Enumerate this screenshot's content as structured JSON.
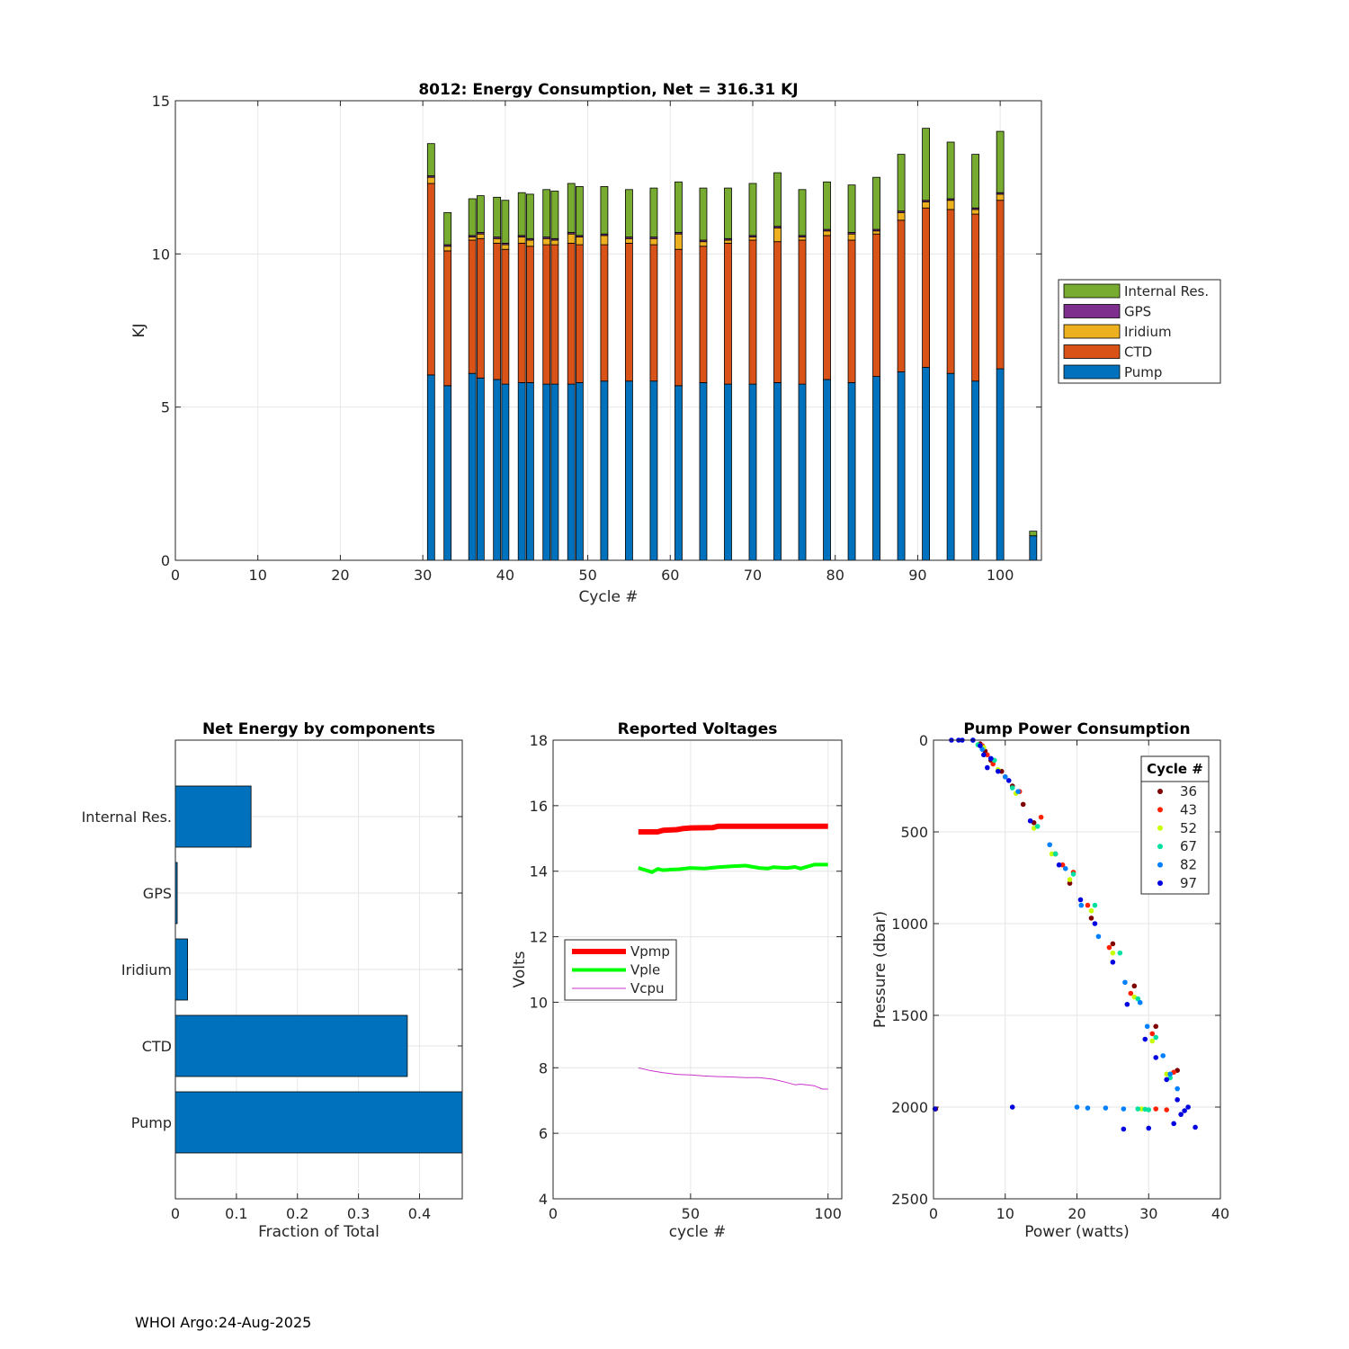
{
  "footer": "WHOI Argo:24-Aug-2025",
  "colors": {
    "pump": "#0072BD",
    "ctd": "#D95319",
    "iridium": "#EDB120",
    "gps": "#7E2F8E",
    "internal": "#77AC30",
    "vpmp": "#FF0000",
    "vple": "#00FF00",
    "vcpu": "#CC33CC",
    "grid": "#e6e6e6",
    "axis": "#262626"
  },
  "chart_data": [
    {
      "id": "energy",
      "type": "bar",
      "stacked": true,
      "title": "8012: Energy Consumption,  Net = 316.31 KJ",
      "xlabel": "Cycle #",
      "ylabel": "KJ",
      "xlim": [
        0,
        105
      ],
      "ylim": [
        0,
        15
      ],
      "xticks": [
        0,
        10,
        20,
        30,
        40,
        50,
        60,
        70,
        80,
        90,
        100
      ],
      "yticks": [
        0,
        5,
        10,
        15
      ],
      "grid": true,
      "legend": {
        "placement": "outside-right",
        "entries": [
          "Internal Res.",
          "GPS",
          "Iridium",
          "CTD",
          "Pump"
        ]
      },
      "x": [
        31,
        33,
        36,
        37,
        39,
        40,
        42,
        43,
        45,
        46,
        48,
        49,
        52,
        55,
        58,
        61,
        64,
        67,
        70,
        73,
        76,
        79,
        82,
        85,
        88,
        91,
        94,
        97,
        100,
        104
      ],
      "series": [
        {
          "name": "Pump",
          "color_key": "pump",
          "values": [
            6.05,
            5.7,
            6.1,
            5.95,
            5.9,
            5.75,
            5.8,
            5.8,
            5.75,
            5.75,
            5.75,
            5.8,
            5.85,
            5.85,
            5.85,
            5.7,
            5.8,
            5.75,
            5.75,
            5.8,
            5.75,
            5.9,
            5.8,
            6.0,
            6.15,
            6.3,
            6.1,
            5.85,
            6.25,
            0.8
          ]
        },
        {
          "name": "CTD",
          "color_key": "ctd",
          "values": [
            6.25,
            4.4,
            4.35,
            4.55,
            4.45,
            4.4,
            4.55,
            4.45,
            4.55,
            4.55,
            4.6,
            4.5,
            4.45,
            4.5,
            4.45,
            4.45,
            4.45,
            4.6,
            4.7,
            4.6,
            4.7,
            4.7,
            4.65,
            4.65,
            4.95,
            5.2,
            5.35,
            5.45,
            5.5,
            0.0
          ]
        },
        {
          "name": "Iridium",
          "color_key": "iridium",
          "values": [
            0.2,
            0.15,
            0.1,
            0.15,
            0.15,
            0.15,
            0.2,
            0.2,
            0.2,
            0.15,
            0.3,
            0.25,
            0.3,
            0.15,
            0.2,
            0.5,
            0.15,
            0.1,
            0.1,
            0.45,
            0.1,
            0.15,
            0.2,
            0.1,
            0.25,
            0.2,
            0.3,
            0.15,
            0.2,
            0.0
          ]
        },
        {
          "name": "GPS",
          "color_key": "gps",
          "values": [
            0.05,
            0.05,
            0.05,
            0.05,
            0.05,
            0.05,
            0.05,
            0.05,
            0.05,
            0.05,
            0.05,
            0.05,
            0.05,
            0.05,
            0.05,
            0.05,
            0.05,
            0.05,
            0.05,
            0.05,
            0.05,
            0.05,
            0.05,
            0.05,
            0.05,
            0.05,
            0.05,
            0.05,
            0.05,
            0.0
          ]
        },
        {
          "name": "Internal Res.",
          "color_key": "internal",
          "values": [
            1.05,
            1.05,
            1.2,
            1.2,
            1.3,
            1.4,
            1.4,
            1.45,
            1.55,
            1.55,
            1.6,
            1.6,
            1.55,
            1.55,
            1.6,
            1.65,
            1.7,
            1.65,
            1.7,
            1.75,
            1.5,
            1.55,
            1.55,
            1.7,
            1.85,
            2.35,
            1.85,
            1.75,
            2.0,
            0.15
          ]
        }
      ]
    },
    {
      "id": "components",
      "type": "bar",
      "orientation": "horizontal",
      "title": "Net Energy by components",
      "xlabel": "Fraction of Total",
      "ylabel": "",
      "xlim": [
        0,
        0.47
      ],
      "xticks": [
        0,
        0.1,
        0.2,
        0.3,
        0.4
      ],
      "xticklabels": [
        "0",
        "0.1",
        "0.2",
        "0.3",
        "0.4"
      ],
      "grid": true,
      "categories": [
        "Internal Res.",
        "GPS",
        "Iridium",
        "CTD",
        "Pump"
      ],
      "values": [
        0.124,
        0.003,
        0.02,
        0.38,
        0.48
      ],
      "color_key": "pump"
    },
    {
      "id": "voltages",
      "type": "line",
      "title": "Reported Voltages",
      "xlabel": "cycle #",
      "ylabel": "Volts",
      "xlim": [
        0,
        105
      ],
      "ylim": [
        4,
        18
      ],
      "xticks": [
        0,
        50,
        100
      ],
      "yticks": [
        4,
        6,
        8,
        10,
        12,
        14,
        16,
        18
      ],
      "grid": true,
      "legend": {
        "placement": "middle-left",
        "entries": [
          "Vpmp",
          "Vple",
          "Vcpu"
        ]
      },
      "series": [
        {
          "name": "Vpmp",
          "color_key": "vpmp",
          "width": 6,
          "x": [
            31,
            38,
            40,
            45,
            47,
            50,
            58,
            60,
            70,
            80,
            90,
            100
          ],
          "values": [
            15.2,
            15.2,
            15.25,
            15.27,
            15.3,
            15.32,
            15.33,
            15.37,
            15.37,
            15.37,
            15.37,
            15.37
          ]
        },
        {
          "name": "Vple",
          "color_key": "vple",
          "width": 4,
          "x": [
            31,
            33,
            36,
            38,
            40,
            43,
            46,
            50,
            55,
            60,
            65,
            70,
            75,
            78,
            80,
            85,
            88,
            90,
            95,
            100
          ],
          "values": [
            14.1,
            14.05,
            13.97,
            14.07,
            14.03,
            14.05,
            14.06,
            14.1,
            14.08,
            14.12,
            14.15,
            14.17,
            14.1,
            14.08,
            14.12,
            14.1,
            14.13,
            14.08,
            14.2,
            14.2
          ]
        },
        {
          "name": "Vcpu",
          "color_key": "vcpu",
          "width": 1,
          "x": [
            31,
            35,
            40,
            45,
            50,
            55,
            60,
            65,
            70,
            75,
            80,
            85,
            88,
            90,
            95,
            98,
            100
          ],
          "values": [
            8.0,
            7.92,
            7.85,
            7.8,
            7.78,
            7.75,
            7.73,
            7.72,
            7.7,
            7.7,
            7.65,
            7.55,
            7.48,
            7.5,
            7.45,
            7.35,
            7.35
          ]
        }
      ]
    },
    {
      "id": "pump_power",
      "type": "scatter",
      "title": "Pump Power Consumption",
      "xlabel": "Power (watts)",
      "ylabel": "Pressure (dbar)",
      "xlim": [
        0,
        40
      ],
      "ylim": [
        0,
        2500
      ],
      "y_reversed": true,
      "xticks": [
        0,
        10,
        20,
        30,
        40
      ],
      "yticks": [
        0,
        500,
        1000,
        1500,
        2000,
        2500
      ],
      "grid": true,
      "legend": {
        "title": "Cycle #",
        "placement": "top-right",
        "entries": [
          "36",
          "43",
          "52",
          "67",
          "82",
          "97"
        ]
      },
      "series": [
        {
          "name": "36",
          "color": "#7f0000",
          "x": [
            6.5,
            7.2,
            8.0,
            9.5,
            11.0,
            12.5,
            14.0,
            17.0,
            19.0,
            22.0,
            25.0,
            28.0,
            31.0,
            34.0,
            0.3
          ],
          "y": [
            20,
            60,
            110,
            170,
            250,
            350,
            450,
            620,
            780,
            970,
            1110,
            1340,
            1560,
            1800,
            2010
          ]
        },
        {
          "name": "43",
          "color": "#ff2000",
          "x": [
            6.8,
            7.5,
            8.3,
            10.0,
            12.0,
            15.0,
            18.0,
            19.5,
            21.5,
            24.5,
            27.5,
            30.5,
            33.5,
            31.0,
            32.5
          ],
          "y": [
            30,
            80,
            130,
            200,
            280,
            420,
            680,
            720,
            900,
            1130,
            1380,
            1600,
            1810,
            2010,
            2015
          ]
        },
        {
          "name": "52",
          "color": "#c8ff00",
          "x": [
            7.0,
            9.0,
            11.5,
            14.0,
            16.5,
            19.0,
            22.0,
            25.0,
            28.0,
            30.5,
            32.5,
            29.0
          ],
          "y": [
            40,
            160,
            290,
            480,
            620,
            760,
            930,
            1160,
            1400,
            1640,
            1820,
            2010
          ]
        },
        {
          "name": "67",
          "color": "#00e0a0",
          "x": [
            6.2,
            8.5,
            11.0,
            14.5,
            17.0,
            19.5,
            22.5,
            26.0,
            28.5,
            31.0,
            33.0,
            28.5,
            29.5,
            30.0
          ],
          "y": [
            25,
            110,
            260,
            470,
            620,
            730,
            900,
            1160,
            1410,
            1620,
            1840,
            2010,
            2012,
            2015
          ]
        },
        {
          "name": "82",
          "color": "#0080ff",
          "x": [
            5.5,
            6.8,
            8.0,
            10.0,
            11.8,
            16.2,
            18.4,
            20.6,
            23.0,
            26.7,
            28.8,
            29.8,
            32.0,
            33.0,
            34.0,
            21.5,
            24.0,
            26.5,
            20.0
          ],
          "y": [
            0,
            50,
            100,
            200,
            280,
            570,
            700,
            900,
            1070,
            1320,
            1430,
            1560,
            1720,
            1820,
            1900,
            2005,
            2005,
            2010,
            2000
          ]
        },
        {
          "name": "97",
          "color": "#0000e0",
          "x": [
            2.5,
            3.5,
            4.0,
            5.5,
            6.5,
            7.0,
            7.5,
            8.0,
            9.0,
            10.5,
            13.5,
            17.5,
            20.5,
            22.5,
            25.0,
            27.0,
            29.5,
            31.0,
            32.5,
            34.0,
            35.0,
            35.5,
            34.5,
            33.5,
            36.5,
            26.5,
            30.0,
            11.0,
            0.2
          ],
          "y": [
            0,
            0,
            0,
            0,
            30,
            80,
            150,
            100,
            170,
            220,
            440,
            680,
            870,
            1000,
            1210,
            1440,
            1630,
            1730,
            1850,
            1960,
            2020,
            2000,
            2040,
            2090,
            2110,
            2120,
            2115,
            2000,
            2010
          ]
        }
      ]
    }
  ]
}
